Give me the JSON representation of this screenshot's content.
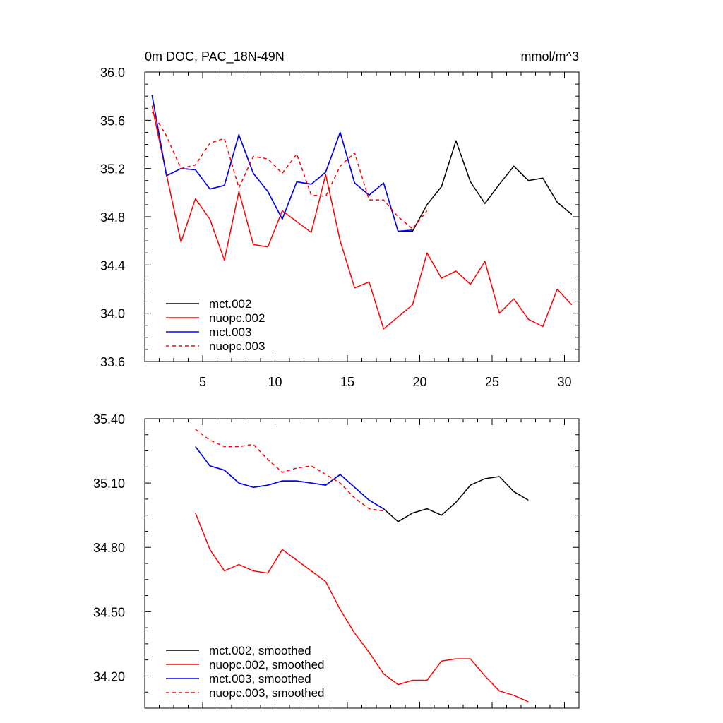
{
  "figure": {
    "title_left": "0m DOC, PAC_18N-49N",
    "title_right": "mmol/m^3"
  },
  "chart_data": [
    {
      "type": "line",
      "title": "0m DOC, PAC_18N-49N",
      "units": "mmol/m^3",
      "xlabel": "",
      "ylabel": "",
      "xlim": [
        1,
        31
      ],
      "ylim": [
        33.6,
        36.0
      ],
      "xticks": [
        5,
        10,
        15,
        20,
        25,
        30
      ],
      "xtick_labels": [
        "5",
        "10",
        "15",
        "20",
        "25",
        "30"
      ],
      "yticks": [
        33.6,
        34.0,
        34.4,
        34.8,
        35.2,
        35.6,
        36.0
      ],
      "ytick_labels": [
        "33.6",
        "34.0",
        "34.4",
        "34.8",
        "35.2",
        "35.6",
        "36.0"
      ],
      "legend_position": "bottom-left",
      "series": [
        {
          "name": "mct.002",
          "color": "#000000",
          "dash": "solid",
          "x": [
            1.5,
            2.5,
            3.5,
            4.5,
            5.5,
            6.5,
            7.5,
            8.5,
            9.5,
            10.5,
            11.5,
            12.5,
            13.5,
            14.5,
            15.5,
            16.5,
            17.5,
            18.5,
            19.5,
            20.5,
            21.5,
            22.5,
            23.5,
            24.5,
            25.5,
            26.5,
            27.5,
            28.5,
            29.5,
            30.5
          ],
          "values": [
            35.81,
            35.14,
            35.2,
            35.19,
            35.03,
            35.06,
            35.48,
            35.16,
            35.01,
            34.78,
            35.09,
            35.07,
            35.17,
            35.5,
            35.08,
            34.98,
            35.08,
            34.68,
            34.68,
            34.9,
            35.05,
            35.43,
            35.09,
            34.91,
            35.07,
            35.22,
            35.1,
            35.12,
            34.92,
            34.82
          ]
        },
        {
          "name": "nuopc.002",
          "color": "#ff0000",
          "dash": "solid",
          "x": [
            1.5,
            2.5,
            3.5,
            4.5,
            5.5,
            6.5,
            7.5,
            8.5,
            9.5,
            10.5,
            11.5,
            12.5,
            13.5,
            14.5,
            15.5,
            16.5,
            17.5,
            18.5,
            19.5,
            20.5,
            21.5,
            22.5,
            23.5,
            24.5,
            25.5,
            26.5,
            27.5,
            28.5,
            29.5,
            30.5
          ],
          "values": [
            35.72,
            35.15,
            34.59,
            34.95,
            34.78,
            34.44,
            35.01,
            34.57,
            34.55,
            34.85,
            34.76,
            34.67,
            35.15,
            34.6,
            34.21,
            34.26,
            33.87,
            33.97,
            34.07,
            34.5,
            34.29,
            34.35,
            34.24,
            34.43,
            34.0,
            34.12,
            33.95,
            33.89,
            34.2,
            34.07
          ]
        },
        {
          "name": "mct.003",
          "color": "#0000ff",
          "dash": "solid",
          "x": [
            1.5,
            2.5,
            3.5,
            4.5,
            5.5,
            6.5,
            7.5,
            8.5,
            9.5,
            10.5,
            11.5,
            12.5,
            13.5,
            14.5,
            15.5,
            16.5,
            17.5,
            18.5,
            19.5
          ],
          "values": [
            35.81,
            35.14,
            35.2,
            35.19,
            35.03,
            35.06,
            35.48,
            35.16,
            35.01,
            34.78,
            35.09,
            35.07,
            35.17,
            35.5,
            35.08,
            34.98,
            35.08,
            34.68,
            34.69
          ]
        },
        {
          "name": "nuopc.003",
          "color": "#ff0000",
          "dash": "dashed",
          "x": [
            1.5,
            2.5,
            3.5,
            4.5,
            5.5,
            6.5,
            7.5,
            8.5,
            9.5,
            10.5,
            11.5,
            12.5,
            13.5,
            14.5,
            15.5,
            16.5,
            17.5,
            18.5,
            19.5,
            20.5
          ],
          "values": [
            35.67,
            35.47,
            35.2,
            35.23,
            35.41,
            35.45,
            35.04,
            35.3,
            35.28,
            35.16,
            35.32,
            34.98,
            34.97,
            35.22,
            35.33,
            34.94,
            34.94,
            34.8,
            34.7,
            34.85
          ]
        }
      ]
    },
    {
      "type": "line",
      "title": "",
      "xlabel": "",
      "ylabel": "",
      "xlim": [
        1,
        31
      ],
      "ylim": [
        34.05,
        35.4
      ],
      "xticks": [
        5,
        10,
        15,
        20,
        25,
        30
      ],
      "yticks": [
        34.2,
        34.5,
        34.8,
        35.1,
        35.4
      ],
      "ytick_labels": [
        "34.20",
        "34.50",
        "34.80",
        "35.10",
        "35.40"
      ],
      "legend_position": "bottom-left",
      "series": [
        {
          "name": "mct.002, smoothed",
          "color": "#000000",
          "dash": "solid",
          "x": [
            4.5,
            5.5,
            6.5,
            7.5,
            8.5,
            9.5,
            10.5,
            11.5,
            12.5,
            13.5,
            14.5,
            15.5,
            16.5,
            17.5,
            18.5,
            19.5,
            20.5,
            21.5,
            22.5,
            23.5,
            24.5,
            25.5,
            26.5,
            27.5
          ],
          "values": [
            35.27,
            35.18,
            35.16,
            35.1,
            35.08,
            35.09,
            35.11,
            35.11,
            35.1,
            35.09,
            35.14,
            35.08,
            35.02,
            34.98,
            34.92,
            34.96,
            34.98,
            34.95,
            35.01,
            35.09,
            35.12,
            35.13,
            35.06,
            35.02
          ]
        },
        {
          "name": "nuopc.002, smoothed",
          "color": "#ff0000",
          "dash": "solid",
          "x": [
            4.5,
            5.5,
            6.5,
            7.5,
            8.5,
            9.5,
            10.5,
            11.5,
            12.5,
            13.5,
            14.5,
            15.5,
            16.5,
            17.5,
            18.5,
            19.5,
            20.5,
            21.5,
            22.5,
            23.5,
            24.5,
            25.5,
            26.5,
            27.5
          ],
          "values": [
            34.96,
            34.79,
            34.69,
            34.72,
            34.69,
            34.68,
            34.79,
            34.74,
            34.69,
            34.64,
            34.51,
            34.4,
            34.31,
            34.21,
            34.16,
            34.18,
            34.18,
            34.27,
            34.28,
            34.28,
            34.2,
            34.13,
            34.11,
            34.08
          ]
        },
        {
          "name": "mct.003, smoothed",
          "color": "#0000ff",
          "dash": "solid",
          "x": [
            4.5,
            5.5,
            6.5,
            7.5,
            8.5,
            9.5,
            10.5,
            11.5,
            12.5,
            13.5,
            14.5,
            15.5,
            16.5,
            17.5
          ],
          "values": [
            35.27,
            35.18,
            35.16,
            35.1,
            35.08,
            35.09,
            35.11,
            35.11,
            35.1,
            35.09,
            35.14,
            35.08,
            35.02,
            34.98
          ]
        },
        {
          "name": "nuopc.003, smoothed",
          "color": "#ff0000",
          "dash": "dashed",
          "x": [
            4.5,
            5.5,
            6.5,
            7.5,
            8.5,
            9.5,
            10.5,
            11.5,
            12.5,
            13.5,
            14.5,
            15.5,
            16.5,
            17.5
          ],
          "values": [
            35.35,
            35.3,
            35.27,
            35.27,
            35.28,
            35.21,
            35.15,
            35.17,
            35.18,
            35.14,
            35.1,
            35.03,
            34.98,
            34.97
          ]
        }
      ]
    }
  ]
}
